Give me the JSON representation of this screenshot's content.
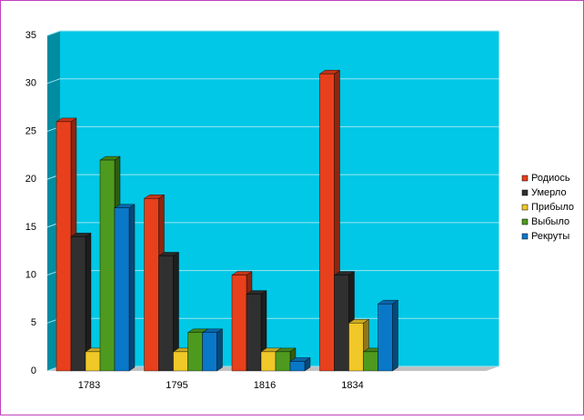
{
  "chart_data": {
    "type": "bar3d",
    "categories": [
      "1783",
      "1795",
      "1816",
      "1834"
    ],
    "series": [
      {
        "name": "Родиось",
        "color": "#e8401c",
        "values": [
          26,
          18,
          10,
          31
        ]
      },
      {
        "name": "Умерло",
        "color": "#303030",
        "values": [
          14,
          12,
          8,
          10
        ]
      },
      {
        "name": "Прибыло",
        "color": "#f0c828",
        "values": [
          2,
          2,
          2,
          5
        ]
      },
      {
        "name": "Выбыло",
        "color": "#4e9a1e",
        "values": [
          22,
          4,
          2,
          2
        ]
      },
      {
        "name": "Рекруты",
        "color": "#0a78c8",
        "values": [
          17,
          4,
          1,
          7
        ]
      }
    ],
    "ylim": [
      0,
      35
    ],
    "yticks": [
      0,
      5,
      10,
      15,
      20,
      25,
      30,
      35
    ],
    "grid": true,
    "legend": "right",
    "wall_color": "#00c8e6"
  }
}
